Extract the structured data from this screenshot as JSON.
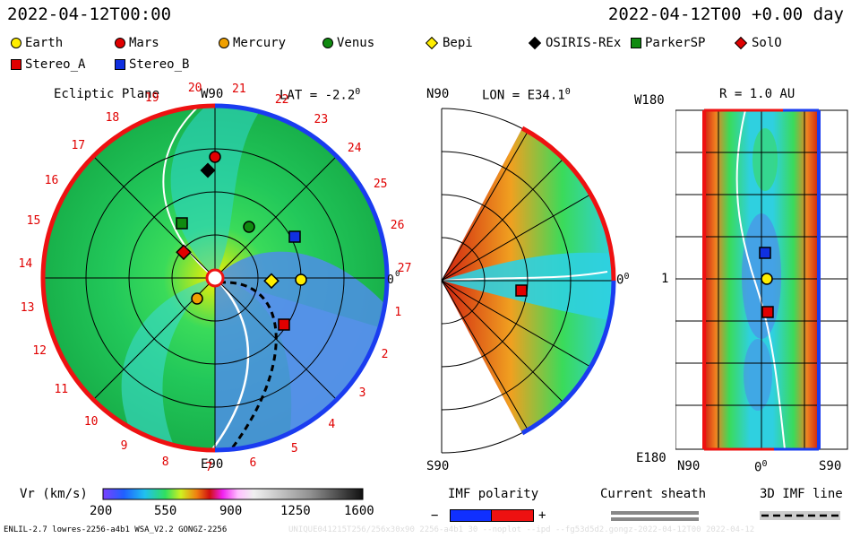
{
  "header": {
    "timestamp_left": "2022-04-12T00:00",
    "timestamp_right": "2022-04-12T00 +0.00 day"
  },
  "legend": [
    {
      "label": "Earth",
      "color": "#ffee00",
      "shape": "circle"
    },
    {
      "label": "Mars",
      "color": "#e00000",
      "shape": "circle"
    },
    {
      "label": "Mercury",
      "color": "#f0a000",
      "shape": "circle"
    },
    {
      "label": "Venus",
      "color": "#108a10",
      "shape": "circle"
    },
    {
      "label": "Bepi",
      "color": "#ffee00",
      "shape": "diamond"
    },
    {
      "label": "OSIRIS-REx",
      "color": "#000000",
      "shape": "diamond"
    },
    {
      "label": "ParkerSP",
      "color": "#108a10",
      "shape": "square"
    },
    {
      "label": "SolO",
      "color": "#e00000",
      "shape": "diamond"
    },
    {
      "label": "Stereo_A",
      "color": "#e00000",
      "shape": "square"
    },
    {
      "label": "Stereo_B",
      "color": "#1030e0",
      "shape": "square"
    }
  ],
  "ecliptic": {
    "title": "Ecliptic Plane",
    "lat": "LAT = -2.2",
    "deg": "0",
    "top": "W90",
    "bottom": "E90",
    "right": "0",
    "hours": [
      "20",
      "21",
      "22",
      "23",
      "24",
      "25",
      "26",
      "27",
      "1",
      "2",
      "3",
      "4",
      "5",
      "6",
      "7",
      "8",
      "9",
      "10",
      "11",
      "12",
      "13",
      "14",
      "15",
      "16",
      "17",
      "18",
      "19"
    ]
  },
  "meridional": {
    "lon": "LON = E34.1",
    "deg": "0",
    "top": "N90",
    "bottom": "S90",
    "right": "0"
  },
  "radial": {
    "title": "R = 1.0 AU",
    "top": "W180",
    "bottom": "E180",
    "mid": "1",
    "x_left": "N90",
    "x_mid": "0",
    "x_right": "S90"
  },
  "colorbar": {
    "label": "Vr (km/s)",
    "ticks": [
      "200",
      "550",
      "900",
      "1250",
      "1600"
    ]
  },
  "imf": {
    "title": "IMF polarity",
    "minus": "−",
    "plus": "+",
    "sheath": "Current sheath",
    "line": "3D IMF line"
  },
  "footer": {
    "left": "ENLIL-2.7 lowres-2256-a4b1 WSA_V2.2 GONGZ-2256",
    "right": "UNIQUE041215T256/256x30x90 2256-a4b1 30 --noplot --ipd --fg53d5d2.gongz-2022-04-12T00  2022-04-12"
  }
}
